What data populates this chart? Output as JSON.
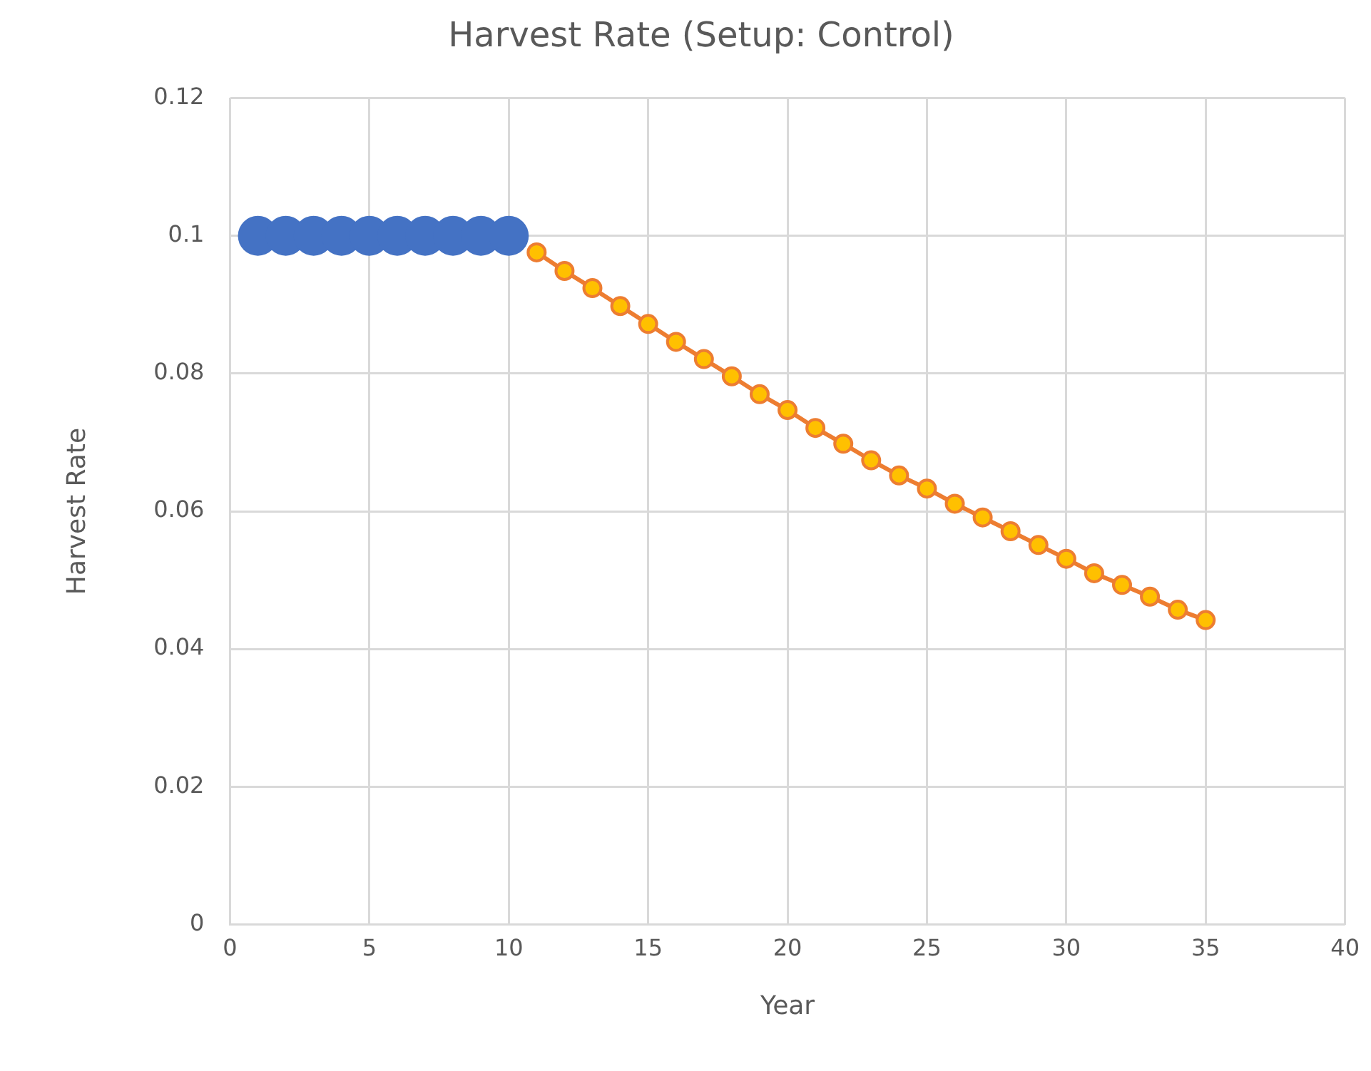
{
  "chart_data": {
    "type": "line",
    "title": "Harvest Rate (Setup: Control)",
    "xlabel": "Year",
    "ylabel": "Harvest Rate",
    "xlim": [
      0,
      40
    ],
    "xticks": [
      0,
      5,
      10,
      15,
      20,
      25,
      30,
      35,
      40
    ],
    "ylim": [
      0,
      0.12
    ],
    "yticks": [
      0,
      0.02,
      0.04,
      0.06,
      0.08,
      0.1,
      0.12
    ],
    "grid": true,
    "legend": false,
    "series": [
      {
        "type": "scatter",
        "marker": "circle",
        "color": "#4472c4",
        "x": [
          1,
          2,
          3,
          4,
          5,
          6,
          7,
          8,
          9,
          10
        ],
        "values": [
          0.1,
          0.1,
          0.1,
          0.1,
          0.1,
          0.1,
          0.1,
          0.1,
          0.1,
          0.1
        ]
      },
      {
        "type": "line",
        "marker": "circle",
        "line_style": "solid",
        "color": "#ed7d31",
        "x": [
          11,
          12,
          13,
          14,
          15,
          16,
          17,
          18,
          19,
          20,
          21,
          22,
          23,
          24,
          25,
          26,
          27,
          28,
          29,
          30,
          31,
          32,
          33,
          34,
          35
        ],
        "values": [
          0.0976,
          0.0949,
          0.0924,
          0.0898,
          0.0872,
          0.0846,
          0.0821,
          0.0796,
          0.077,
          0.0747,
          0.0721,
          0.0698,
          0.0674,
          0.0652,
          0.0633,
          0.0611,
          0.0591,
          0.0571,
          0.0551,
          0.0531,
          0.051,
          0.0493,
          0.0476,
          0.0457,
          0.0442
        ]
      }
    ]
  }
}
